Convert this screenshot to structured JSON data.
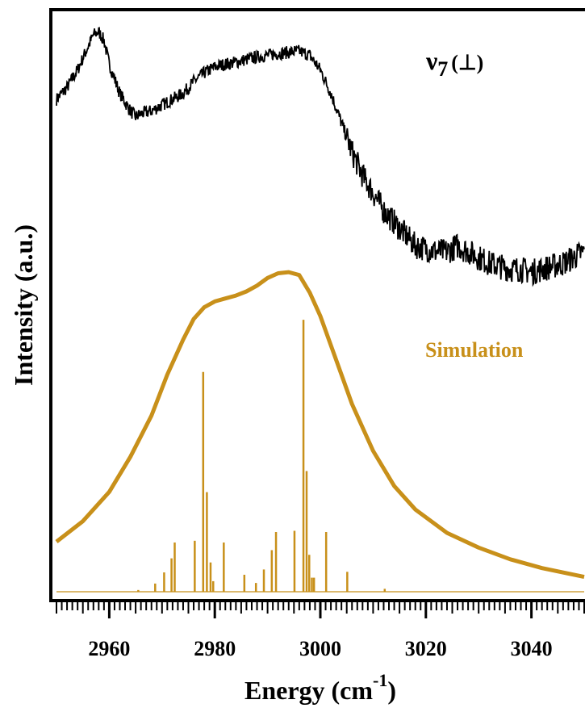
{
  "chart_data": {
    "type": "line",
    "xlabel": "Energy (cm",
    "xlabel_sup": "-1",
    "xlabel_close": ")",
    "ylabel": "Intensity (a.u.)",
    "xlim": [
      2950,
      3050
    ],
    "ylim": [
      0,
      1
    ],
    "x_ticks": [
      2960,
      2980,
      3000,
      3020,
      3040
    ],
    "grid": false,
    "legend": "none",
    "annotations": {
      "band_symbol": "ν",
      "band_index": "7",
      "band_polarization": "(⊥)",
      "simulation": "Simulation"
    },
    "colors": {
      "experiment": "#000000",
      "simulation": "#C8901A"
    },
    "series": [
      {
        "kind": "experimental",
        "x": [
          2950,
          2952,
          2954,
          2956,
          2957,
          2958,
          2959,
          2960,
          2962,
          2964,
          2965,
          2966,
          2968,
          2970,
          2972,
          2974,
          2976,
          2978,
          2980,
          2982,
          2984,
          2986,
          2988,
          2990,
          2992,
          2994,
          2996,
          2998,
          3000,
          3002,
          3004,
          3006,
          3008,
          3010,
          3012,
          3014,
          3016,
          3018,
          3020,
          3022,
          3024,
          3026,
          3028,
          3030,
          3032,
          3034,
          3036,
          3038,
          3040,
          3042,
          3044,
          3046,
          3048,
          3050
        ],
        "y": [
          0.85,
          0.87,
          0.9,
          0.94,
          0.96,
          0.965,
          0.95,
          0.91,
          0.86,
          0.83,
          0.82,
          0.825,
          0.83,
          0.84,
          0.85,
          0.86,
          0.88,
          0.895,
          0.905,
          0.91,
          0.913,
          0.918,
          0.922,
          0.925,
          0.928,
          0.93,
          0.932,
          0.925,
          0.9,
          0.86,
          0.81,
          0.76,
          0.72,
          0.69,
          0.66,
          0.64,
          0.62,
          0.6,
          0.595,
          0.59,
          0.59,
          0.6,
          0.59,
          0.58,
          0.57,
          0.565,
          0.56,
          0.56,
          0.555,
          0.56,
          0.565,
          0.57,
          0.58,
          0.59
        ]
      },
      {
        "kind": "simulated-envelope",
        "x": [
          2950,
          2955,
          2960,
          2964,
          2968,
          2971,
          2974,
          2976,
          2978,
          2980,
          2982,
          2984,
          2986,
          2988,
          2990,
          2992,
          2994,
          2996,
          2998,
          3000,
          3002,
          3004,
          3006,
          3008,
          3010,
          3014,
          3018,
          3024,
          3030,
          3036,
          3042,
          3050
        ],
        "y": [
          0.095,
          0.13,
          0.18,
          0.24,
          0.31,
          0.38,
          0.44,
          0.475,
          0.495,
          0.505,
          0.51,
          0.515,
          0.522,
          0.532,
          0.545,
          0.553,
          0.555,
          0.55,
          0.52,
          0.48,
          0.43,
          0.38,
          0.33,
          0.29,
          0.25,
          0.19,
          0.15,
          0.11,
          0.085,
          0.065,
          0.05,
          0.035
        ]
      },
      {
        "kind": "stick-spectrum",
        "x": [
          2965.5,
          2968.7,
          2970.4,
          2971.8,
          2972.4,
          2976.2,
          2977.8,
          2978.5,
          2979.2,
          2979.7,
          2981.7,
          2985.6,
          2987.8,
          2989.3,
          2990.8,
          2991.6,
          2995.1,
          2996.8,
          2997.4,
          2997.9,
          2998.4,
          2998.8,
          3001.1,
          3005.1,
          3012.2
        ],
        "y": [
          0.003,
          0.014,
          0.033,
          0.057,
          0.084,
          0.087,
          0.375,
          0.17,
          0.05,
          0.018,
          0.084,
          0.029,
          0.015,
          0.038,
          0.071,
          0.102,
          0.104,
          0.464,
          0.206,
          0.063,
          0.024,
          0.024,
          0.102,
          0.034,
          0.005
        ]
      }
    ]
  }
}
